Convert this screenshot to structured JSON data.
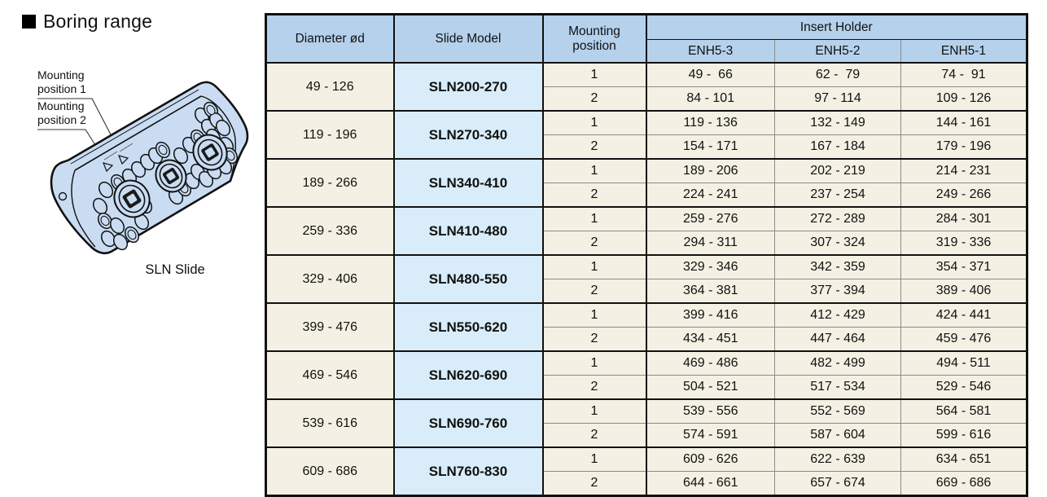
{
  "page": {
    "title": "Boring range"
  },
  "colors": {
    "header-bg": "#b5d1ec",
    "model-bg": "#d8edf9",
    "cell-bg": "#f4f1e4",
    "border-dark": "#111111",
    "border-light": "#8a8a8a",
    "block-fill": "#c9dcf2",
    "ink": "#111111"
  },
  "diagram": {
    "label_position1": "Mounting position 1",
    "label_position2": "Mounting position 2",
    "caption": "SLN Slide"
  },
  "table": {
    "headers": {
      "diameter": "Diameter ød",
      "slide_model": "Slide Model",
      "mounting_position": "Mounting position",
      "insert_holder": "Insert Holder",
      "insert_columns": [
        "ENH5-3",
        "ENH5-2",
        "ENH5-1"
      ]
    },
    "groups": [
      {
        "diameter": "49 - 126",
        "model": "SLN200-270",
        "rows": [
          {
            "position": "1",
            "values": [
              "49 -  66",
              "62 -  79",
              "74 -  91"
            ]
          },
          {
            "position": "2",
            "values": [
              "84 - 101",
              "97 - 114",
              "109 - 126"
            ]
          }
        ]
      },
      {
        "diameter": "119 - 196",
        "model": "SLN270-340",
        "rows": [
          {
            "position": "1",
            "values": [
              "119 - 136",
              "132 - 149",
              "144 - 161"
            ]
          },
          {
            "position": "2",
            "values": [
              "154 - 171",
              "167 - 184",
              "179 - 196"
            ]
          }
        ]
      },
      {
        "diameter": "189 - 266",
        "model": "SLN340-410",
        "rows": [
          {
            "position": "1",
            "values": [
              "189 - 206",
              "202 - 219",
              "214 - 231"
            ]
          },
          {
            "position": "2",
            "values": [
              "224 - 241",
              "237 - 254",
              "249 - 266"
            ]
          }
        ]
      },
      {
        "diameter": "259 - 336",
        "model": "SLN410-480",
        "rows": [
          {
            "position": "1",
            "values": [
              "259 - 276",
              "272 - 289",
              "284 - 301"
            ]
          },
          {
            "position": "2",
            "values": [
              "294 - 311",
              "307 - 324",
              "319 - 336"
            ]
          }
        ]
      },
      {
        "diameter": "329 - 406",
        "model": "SLN480-550",
        "rows": [
          {
            "position": "1",
            "values": [
              "329 - 346",
              "342 - 359",
              "354 - 371"
            ]
          },
          {
            "position": "2",
            "values": [
              "364 - 381",
              "377 - 394",
              "389 - 406"
            ]
          }
        ]
      },
      {
        "diameter": "399 - 476",
        "model": "SLN550-620",
        "rows": [
          {
            "position": "1",
            "values": [
              "399 - 416",
              "412 - 429",
              "424 - 441"
            ]
          },
          {
            "position": "2",
            "values": [
              "434 - 451",
              "447 - 464",
              "459 - 476"
            ]
          }
        ]
      },
      {
        "diameter": "469 - 546",
        "model": "SLN620-690",
        "rows": [
          {
            "position": "1",
            "values": [
              "469 - 486",
              "482 - 499",
              "494 - 511"
            ]
          },
          {
            "position": "2",
            "values": [
              "504 - 521",
              "517 - 534",
              "529 - 546"
            ]
          }
        ]
      },
      {
        "diameter": "539 - 616",
        "model": "SLN690-760",
        "rows": [
          {
            "position": "1",
            "values": [
              "539 - 556",
              "552 - 569",
              "564 - 581"
            ]
          },
          {
            "position": "2",
            "values": [
              "574 - 591",
              "587 - 604",
              "599 - 616"
            ]
          }
        ]
      },
      {
        "diameter": "609 - 686",
        "model": "SLN760-830",
        "rows": [
          {
            "position": "1",
            "values": [
              "609 - 626",
              "622 - 639",
              "634 - 651"
            ]
          },
          {
            "position": "2",
            "values": [
              "644 - 661",
              "657 - 674",
              "669 - 686"
            ]
          }
        ]
      }
    ]
  }
}
